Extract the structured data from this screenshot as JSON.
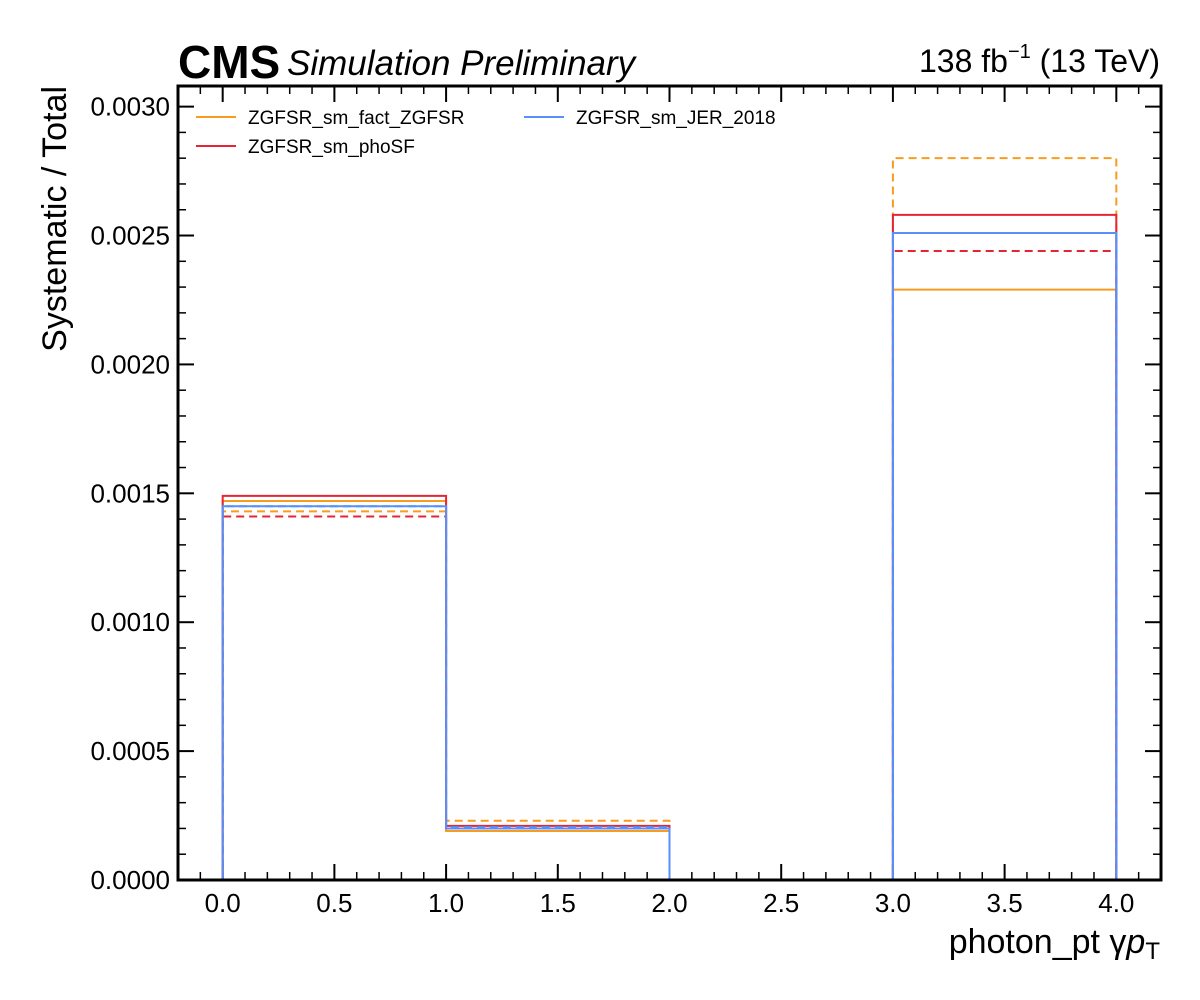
{
  "header": {
    "cms": "CMS",
    "extra": "Simulation Preliminary",
    "lumi_value": "138 fb",
    "lumi_exp": "−1",
    "lumi_energy": " (13 TeV)"
  },
  "chart_data": {
    "type": "line",
    "style": "step-histogram",
    "xlabel": "photon_pt   γ",
    "xlabel_var": "p",
    "xlabel_sub": "T",
    "ylabel": "Systematic / Total",
    "xlim": [
      -0.2,
      4.2
    ],
    "ylim": [
      0,
      0.00308
    ],
    "x_ticks": [
      "0.0",
      "0.5",
      "1.0",
      "1.5",
      "2.0",
      "2.5",
      "3.0",
      "3.5",
      "4.0"
    ],
    "y_ticks": [
      "0.0000",
      "0.0005",
      "0.0010",
      "0.0015",
      "0.0020",
      "0.0025",
      "0.0030"
    ],
    "bin_edges": [
      0,
      1,
      2,
      3,
      4
    ],
    "legend_placement": "top-left",
    "series": [
      {
        "name": "ZGFSR_sm_fact_ZGFSR",
        "color": "#f89c20",
        "variation": "up",
        "values": [
          0.00147,
          0.00019,
          0.0,
          0.00229
        ]
      },
      {
        "color": "#f89c20",
        "variation": "down",
        "values": [
          0.00143,
          0.00023,
          0.0,
          0.0028
        ]
      },
      {
        "name": "ZGFSR_sm_phoSF",
        "color": "#e42536",
        "variation": "up",
        "values": [
          0.00149,
          0.00021,
          0.0,
          0.00258
        ]
      },
      {
        "color": "#e42536",
        "variation": "down",
        "values": [
          0.00141,
          0.0002,
          0.0,
          0.00244
        ]
      },
      {
        "name": "ZGFSR_sm_JER_2018",
        "color": "#5790fc",
        "variation": "up",
        "values": [
          0.00145,
          0.0002,
          0.0,
          0.00251
        ]
      },
      {
        "color": "#5790fc",
        "variation": "down",
        "values": [
          0.00145,
          0.000205,
          0.0,
          0.00251
        ]
      }
    ]
  }
}
